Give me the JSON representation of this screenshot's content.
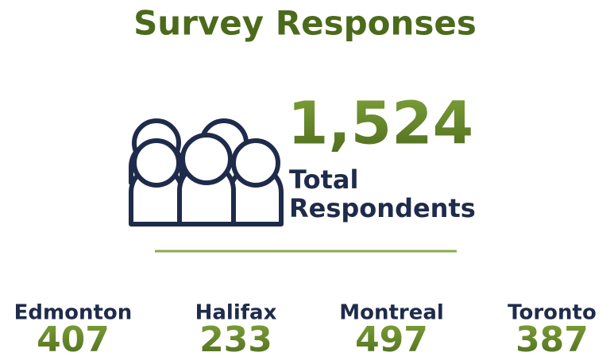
{
  "title": "Survey Responses",
  "total": "1,524",
  "total_label": [
    "Total",
    "Respondents"
  ],
  "cities": [
    {
      "name": "Edmonton",
      "value": 407
    },
    {
      "name": "Halifax",
      "value": 233
    },
    {
      "name": "Montreal",
      "value": 497
    },
    {
      "name": "Toronto",
      "value": 387
    }
  ]
}
